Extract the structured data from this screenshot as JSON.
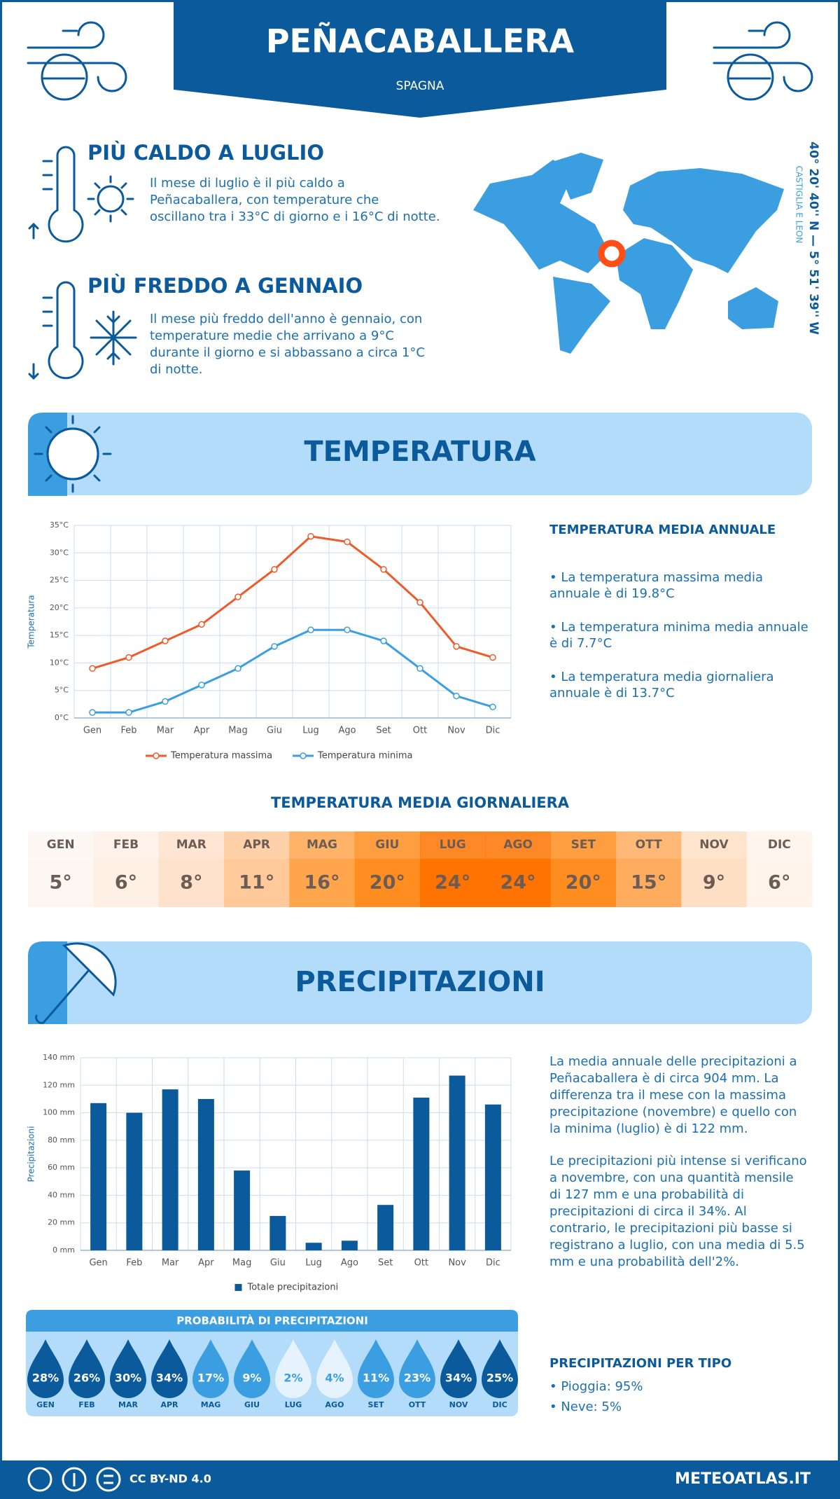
{
  "header": {
    "title": "PEÑACABALLERA",
    "subtitle": "SPAGNA"
  },
  "hottest": {
    "title": "PIÙ CALDO A LUGLIO",
    "lines": [
      "Il mese di luglio è il più caldo a",
      "Peñacaballera, con temperature che",
      "oscillano tra i 33°C di giorno e i 16°C di notte."
    ]
  },
  "coldest": {
    "title": "PIÙ FREDDO A GENNAIO",
    "lines": [
      "Il mese più freddo dell'anno è gennaio, con",
      "temperature medie che arrivano a 9°C",
      "durante il giorno e si abbassano a circa 1°C",
      "di notte."
    ]
  },
  "map": {
    "coordinates": "40° 20' 40'' N — 5° 51' 39'' W",
    "region": "CASTIGLIA E LEON"
  },
  "temperature_section": {
    "title": "TEMPERATURA",
    "summary_title": "TEMPERATURA MEDIA ANNUALE",
    "bullets": [
      [
        "• La temperatura massima media",
        "annuale è di 19.8°C"
      ],
      [
        "• La temperatura minima media annuale",
        "è di 7.7°C"
      ],
      [
        "• La temperatura media giornaliera",
        "annuale è di 13.7°C"
      ]
    ]
  },
  "daily": {
    "title": "TEMPERATURA MEDIA GIORNALIERA",
    "months": [
      "GEN",
      "FEB",
      "MAR",
      "APR",
      "MAG",
      "GIU",
      "LUG",
      "AGO",
      "SET",
      "OTT",
      "NOV",
      "DIC"
    ],
    "values": [
      5,
      6,
      8,
      11,
      16,
      20,
      24,
      24,
      20,
      15,
      9,
      6
    ],
    "value_labels": [
      "5°",
      "6°",
      "8°",
      "11°",
      "16°",
      "20°",
      "24°",
      "24°",
      "20°",
      "15°",
      "9°",
      "6°"
    ],
    "colors": [
      "#fdf7f2",
      "#fff0e6",
      "#ffe2cc",
      "#ffc999",
      "#ffa64d",
      "#ff8d1f",
      "#ff7300",
      "#ff7300",
      "#ff8d1f",
      "#ffac5e",
      "#ffdfc4",
      "#fff3ea"
    ]
  },
  "precipitation_section": {
    "title": "PRECIPITAZIONI",
    "paragraphs": [
      [
        "La media annuale delle precipitazioni a",
        "Peñacaballera è di circa 904 mm. La",
        "differenza tra il mese con la massima",
        "precipitazione (novembre) e quello con",
        "la minima (luglio) è di 122 mm."
      ],
      [
        "Le precipitazioni più intense si verificano",
        "a novembre, con una quantità mensile",
        "di 127 mm e una probabilità di",
        "precipitazioni di circa il 34%. Al",
        "contrario, le precipitazioni più basse si",
        "registrano a luglio, con una media di 5.5",
        "mm e una probabilità dell'2%."
      ]
    ]
  },
  "probability": {
    "title": "PROBABILITÀ DI PRECIPITAZIONI",
    "months": [
      "GEN",
      "FEB",
      "MAR",
      "APR",
      "MAG",
      "GIU",
      "LUG",
      "AGO",
      "SET",
      "OTT",
      "NOV",
      "DIC"
    ],
    "values": [
      28,
      26,
      30,
      34,
      17,
      9,
      2,
      4,
      11,
      23,
      34,
      25
    ],
    "value_labels": [
      "28%",
      "26%",
      "30%",
      "34%",
      "17%",
      "9%",
      "2%",
      "4%",
      "11%",
      "23%",
      "34%",
      "25%"
    ],
    "colors": [
      "#0a5a9c",
      "#0a5a9c",
      "#0a5a9c",
      "#0a5a9c",
      "#3a9ee0",
      "#3a9ee0",
      "#e6f3fd",
      "#e6f3fd",
      "#3a9ee0",
      "#3a9ee0",
      "#0a5a9c",
      "#0a5a9c"
    ]
  },
  "types": {
    "title": "PRECIPITAZIONI PER TIPO",
    "items": [
      "• Pioggia: 95%",
      "• Neve: 5%"
    ]
  },
  "footer": {
    "license": "CC BY-ND 4.0",
    "site": "METEOATLAS.IT"
  },
  "chart_data": [
    {
      "type": "line",
      "y_label": "Temperatura",
      "categories": [
        "Gen",
        "Feb",
        "Mar",
        "Apr",
        "Mag",
        "Giu",
        "Lug",
        "Ago",
        "Set",
        "Ott",
        "Nov",
        "Dic"
      ],
      "series": [
        {
          "name": "Temperatura massima",
          "color": "#f05a28",
          "values": [
            9,
            11,
            14,
            17,
            22,
            27,
            33,
            32,
            27,
            21,
            13,
            11
          ]
        },
        {
          "name": "Temperatura minima",
          "color": "#3a9ee0",
          "values": [
            1,
            1,
            3,
            6,
            9,
            13,
            16,
            16,
            14,
            9,
            4,
            2
          ]
        }
      ],
      "ylim": [
        0,
        35
      ],
      "yticks": [
        {
          "value": 0,
          "label": "0°C"
        },
        {
          "value": 5,
          "label": "5°C"
        },
        {
          "value": 10,
          "label": "10°C"
        },
        {
          "value": 15,
          "label": "15°C"
        },
        {
          "value": 20,
          "label": "20°C"
        },
        {
          "value": 25,
          "label": "25°C"
        },
        {
          "value": 30,
          "label": "30°C"
        },
        {
          "value": 35,
          "label": "35°C"
        }
      ],
      "grid": true
    },
    {
      "type": "bar",
      "y_label": "Precipitazioni",
      "categories": [
        "Gen",
        "Feb",
        "Mar",
        "Apr",
        "Mag",
        "Giu",
        "Lug",
        "Ago",
        "Set",
        "Ott",
        "Nov",
        "Dic"
      ],
      "series": [
        {
          "name": "Totale precipitazioni",
          "color": "#0a5a9c",
          "values": [
            107,
            100,
            117,
            110,
            58,
            25,
            5.5,
            7,
            33,
            111,
            127,
            106
          ]
        }
      ],
      "ylim": [
        0,
        140
      ],
      "yticks": [
        {
          "value": 0,
          "label": "0 mm"
        },
        {
          "value": 20,
          "label": "20 mm"
        },
        {
          "value": 40,
          "label": "40 mm"
        },
        {
          "value": 60,
          "label": "60 mm"
        },
        {
          "value": 80,
          "label": "80 mm"
        },
        {
          "value": 100,
          "label": "100 mm"
        },
        {
          "value": 120,
          "label": "120 mm"
        },
        {
          "value": 140,
          "label": "140 mm"
        }
      ],
      "grid": true
    }
  ]
}
